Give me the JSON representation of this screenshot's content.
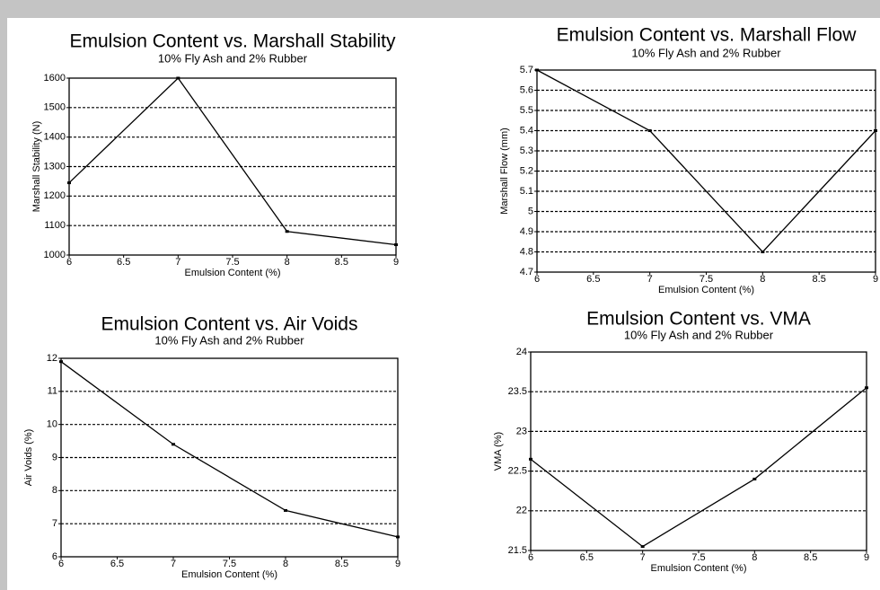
{
  "chart_data": [
    {
      "type": "line",
      "title": "Emulsion Content vs. Marshall Stability",
      "subtitle": "10% Fly Ash and 2% Rubber",
      "x_label": "Emulsion Content (%)",
      "y_label": "Marshall Stability (N)",
      "x": [
        6,
        7,
        8,
        9
      ],
      "values": [
        1245,
        1600,
        1080,
        1035
      ],
      "color": "#000000",
      "xlim": [
        6,
        9
      ],
      "xticks": [
        6,
        6.5,
        7,
        7.5,
        8,
        8.5,
        9
      ],
      "ylim": [
        1000,
        1600
      ],
      "yticks": [
        1000,
        1100,
        1200,
        1300,
        1400,
        1500,
        1600
      ],
      "grid": true
    },
    {
      "type": "line",
      "title": "Emulsion Content vs. Marshall Flow",
      "subtitle": "10% Fly Ash and 2% Rubber",
      "x_label": "Emulsion Content (%)",
      "y_label": "Marshall Flow (mm)",
      "x": [
        6,
        7,
        8,
        9
      ],
      "values": [
        5.7,
        5.4,
        4.8,
        5.4
      ],
      "color": "#000000",
      "xlim": [
        6,
        9
      ],
      "xticks": [
        6,
        6.5,
        7,
        7.5,
        8,
        8.5,
        9
      ],
      "ylim": [
        4.7,
        5.7
      ],
      "yticks": [
        4.7,
        4.8,
        4.9,
        5,
        5.1,
        5.2,
        5.3,
        5.4,
        5.5,
        5.6,
        5.7
      ],
      "grid": true
    },
    {
      "type": "line",
      "title": "Emulsion Content vs. Air Voids",
      "subtitle": "10% Fly Ash and 2% Rubber",
      "x_label": "Emulsion Content (%)",
      "y_label": "Air Voids (%)",
      "x": [
        6,
        7,
        8,
        9
      ],
      "values": [
        11.9,
        9.4,
        7.4,
        6.6
      ],
      "color": "#000000",
      "xlim": [
        6,
        9
      ],
      "xticks": [
        6,
        6.5,
        7,
        7.5,
        8,
        8.5,
        9
      ],
      "ylim": [
        6,
        12
      ],
      "yticks": [
        6,
        7,
        8,
        9,
        10,
        11,
        12
      ],
      "grid": true
    },
    {
      "type": "line",
      "title": "Emulsion Content vs. VMA",
      "subtitle": "10% Fly Ash and 2% Rubber",
      "x_label": "Emulsion Content (%)",
      "y_label": "VMA (%)",
      "x": [
        6,
        7,
        8,
        9
      ],
      "values": [
        22.65,
        21.55,
        22.4,
        23.55
      ],
      "color": "#000000",
      "xlim": [
        6,
        9
      ],
      "xticks": [
        6,
        6.5,
        7,
        7.5,
        8,
        8.5,
        9
      ],
      "ylim": [
        21.5,
        24
      ],
      "yticks": [
        21.5,
        22,
        22.5,
        23,
        23.5,
        24
      ],
      "grid": true
    }
  ]
}
